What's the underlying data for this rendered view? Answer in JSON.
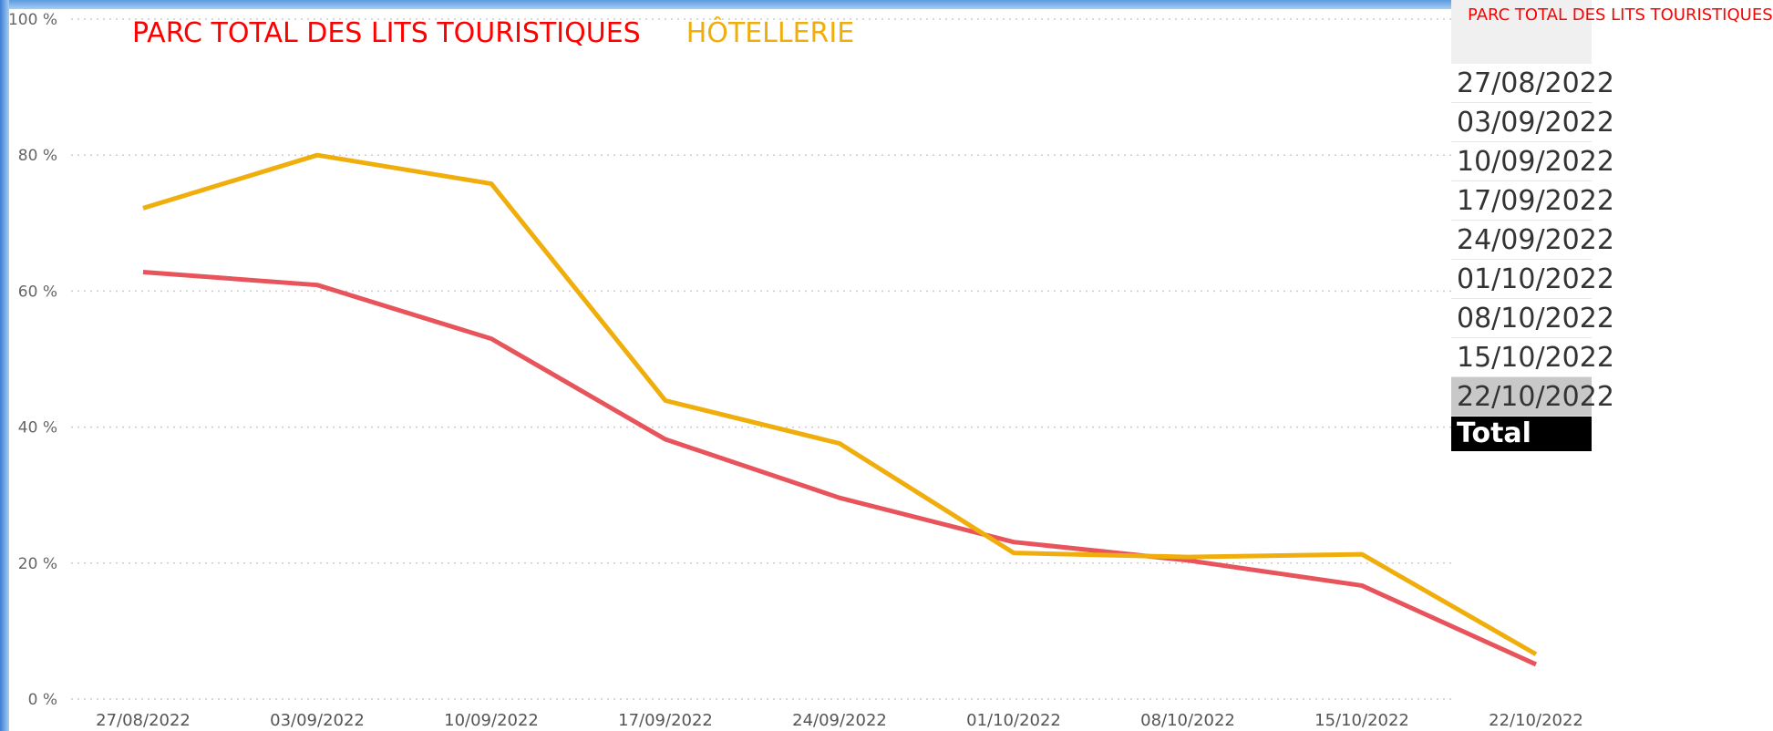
{
  "chart_data": {
    "type": "line",
    "categories": [
      "27/08/2022",
      "03/09/2022",
      "10/09/2022",
      "17/09/2022",
      "24/09/2022",
      "01/10/2022",
      "08/10/2022",
      "15/10/2022",
      "22/10/2022"
    ],
    "series": [
      {
        "name": "PARC TOTAL DES LITS TOURISTIQUES",
        "color": "#e8545c",
        "values": [
          62.8,
          60.9,
          53.0,
          38.2,
          29.6,
          23.1,
          20.4,
          16.7,
          5.1
        ]
      },
      {
        "name": "HÔTELLERIE",
        "color": "#f0ae0c",
        "values": [
          72.2,
          80.0,
          75.8,
          43.9,
          37.6,
          21.5,
          20.9,
          21.3,
          6.6
        ]
      }
    ],
    "legend_colors": [
      "#ff0000",
      "#f0ae0c"
    ],
    "ylim": [
      0,
      100
    ],
    "yticks": [
      {
        "value": 0,
        "label": "0 %"
      },
      {
        "value": 20,
        "label": "20 %"
      },
      {
        "value": 40,
        "label": "40 %"
      },
      {
        "value": 60,
        "label": "60 %"
      },
      {
        "value": 80,
        "label": "80 %"
      },
      {
        "value": 100,
        "label": "100 %"
      }
    ],
    "grid": true
  },
  "table": {
    "header": "PARC TOTAL DES LITS TOURISTIQUES",
    "rows": [
      "27/08/2022",
      "03/09/2022",
      "10/09/2022",
      "17/09/2022",
      "24/09/2022",
      "01/10/2022",
      "08/10/2022",
      "15/10/2022",
      "22/10/2022"
    ],
    "total": "Total"
  }
}
